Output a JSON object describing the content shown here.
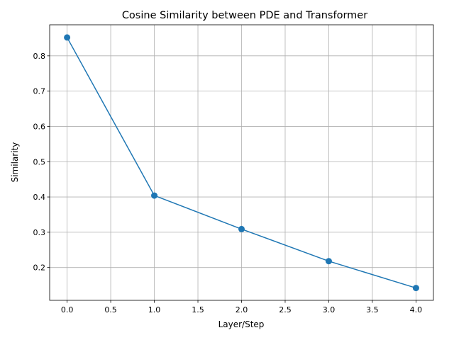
{
  "chart_data": {
    "type": "line",
    "title": "Cosine Similarity between PDE and Transformer",
    "xlabel": "Layer/Step",
    "ylabel": "Similarity",
    "xlim": [
      -0.2,
      4.2
    ],
    "ylim": [
      0.107,
      0.888
    ],
    "xticks": [
      0.0,
      0.5,
      1.0,
      1.5,
      2.0,
      2.5,
      3.0,
      3.5,
      4.0
    ],
    "xtick_labels": [
      "0.0",
      "0.5",
      "1.0",
      "1.5",
      "2.0",
      "2.5",
      "3.0",
      "3.5",
      "4.0"
    ],
    "yticks": [
      0.2,
      0.3,
      0.4,
      0.5,
      0.6,
      0.7,
      0.8
    ],
    "ytick_labels": [
      "0.2",
      "0.3",
      "0.4",
      "0.5",
      "0.6",
      "0.7",
      "0.8"
    ],
    "grid": true,
    "legend": false,
    "series": [
      {
        "x": [
          0,
          1,
          2,
          3,
          4
        ],
        "values": [
          0.852,
          0.404,
          0.309,
          0.218,
          0.142
        ],
        "color": "#1f77b4",
        "marker": "circle"
      }
    ]
  }
}
